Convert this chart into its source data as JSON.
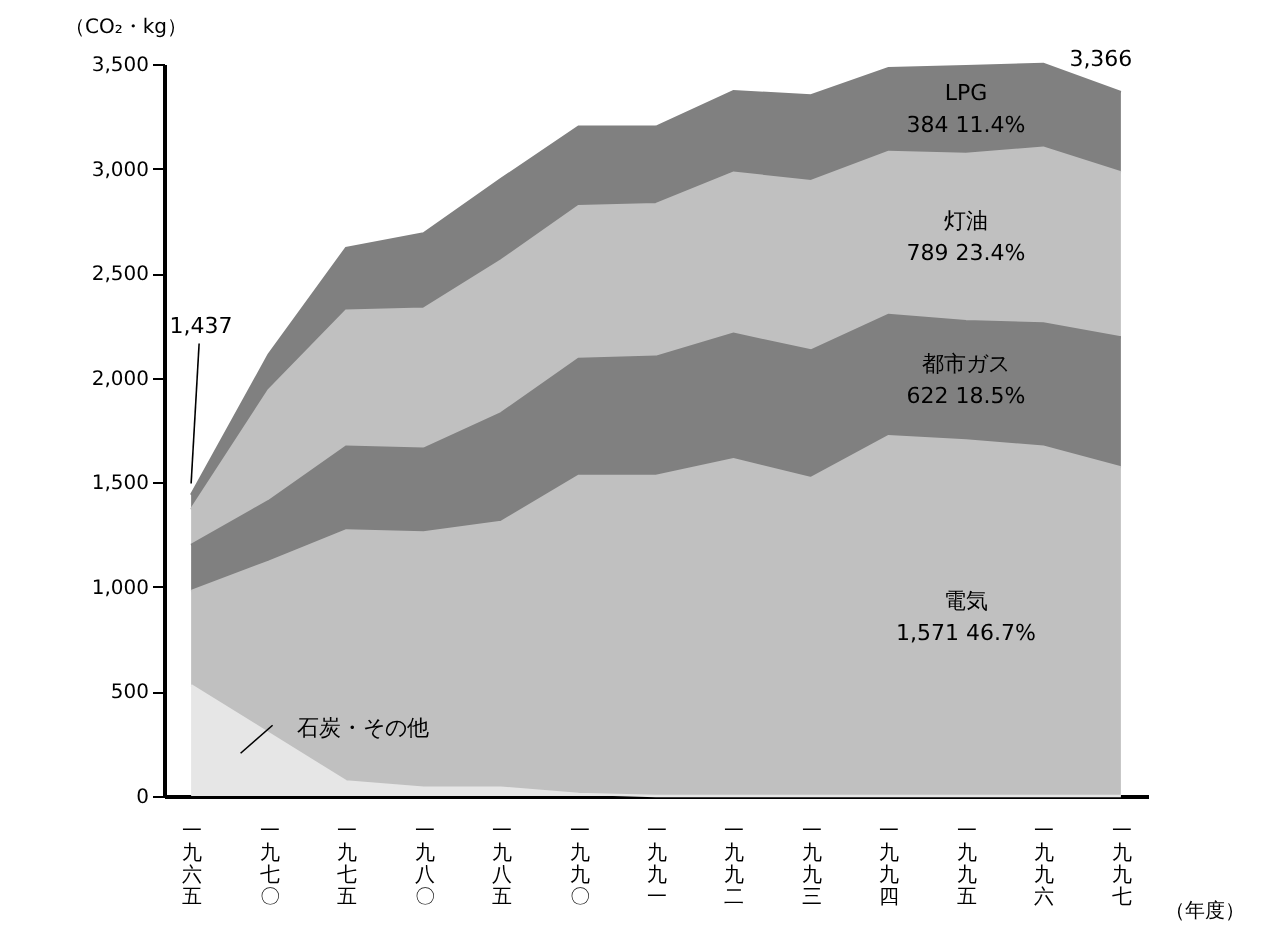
{
  "chart_data": {
    "type": "area",
    "stacked": true,
    "ylabel": "（CO₂・kg）",
    "xlabel": "（年度）",
    "categories": [
      "一九六五",
      "一九七〇",
      "一九七五",
      "一九八〇",
      "一九八五",
      "一九九〇",
      "一九九一",
      "一九九二",
      "一九九三",
      "一九九四",
      "一九九五",
      "一九九六",
      "一九九七"
    ],
    "series": [
      {
        "name": "石炭・その他",
        "color": "#e6e6e6",
        "values": [
          530,
          300,
          70,
          40,
          40,
          10,
          0,
          0,
          0,
          0,
          0,
          0,
          0
        ]
      },
      {
        "name": "電気",
        "color": "#c0c0c0",
        "values": [
          450,
          820,
          1200,
          1220,
          1270,
          1520,
          1530,
          1610,
          1520,
          1720,
          1700,
          1670,
          1571
        ]
      },
      {
        "name": "都市ガス",
        "color": "#808080",
        "values": [
          220,
          290,
          400,
          400,
          520,
          560,
          570,
          600,
          610,
          580,
          570,
          590,
          622
        ]
      },
      {
        "name": "灯油",
        "color": "#c0c0c0",
        "values": [
          170,
          530,
          650,
          670,
          730,
          730,
          730,
          770,
          810,
          780,
          800,
          840,
          789
        ]
      },
      {
        "name": "LPG",
        "color": "#808080",
        "values": [
          70,
          170,
          300,
          360,
          390,
          380,
          370,
          390,
          410,
          400,
          420,
          400,
          384
        ]
      }
    ],
    "ylim": [
      0,
      3500
    ],
    "yticks": [
      0,
      500,
      {
        "value": 1000,
        "label": "1,000"
      },
      {
        "value": 1500,
        "label": "1,500"
      },
      {
        "value": 2000,
        "label": "2,000"
      },
      {
        "value": 2500,
        "label": "2,500"
      },
      {
        "value": 3000,
        "label": "3,000"
      },
      {
        "value": 3500,
        "label": "3,500"
      }
    ],
    "grid": false,
    "annotations": [
      {
        "text": "1,437",
        "x": "一九六五",
        "y": 1437
      },
      {
        "text": "3,366",
        "x": "一九九七",
        "y": 3366
      },
      "1,571  46.7%",
      "622  18.5%",
      "789  23.4%",
      "384  11.4%"
    ]
  }
}
